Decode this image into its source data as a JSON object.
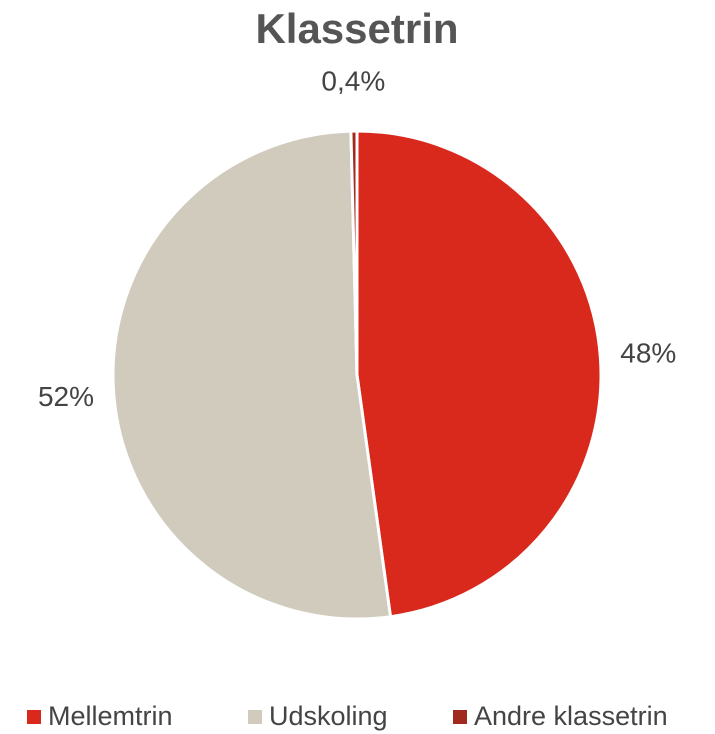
{
  "chart_data": {
    "type": "pie",
    "title": "Klassetrin",
    "categories": [
      "Mellemtrin",
      "Udskoling",
      "Andre klassetrin"
    ],
    "values": [
      48,
      52,
      0.4
    ],
    "value_labels": [
      "48%",
      "52%",
      "0,4%"
    ],
    "colors": [
      "#d9291c",
      "#d0cbbd",
      "#a12a1f"
    ],
    "legend": "bottom"
  }
}
